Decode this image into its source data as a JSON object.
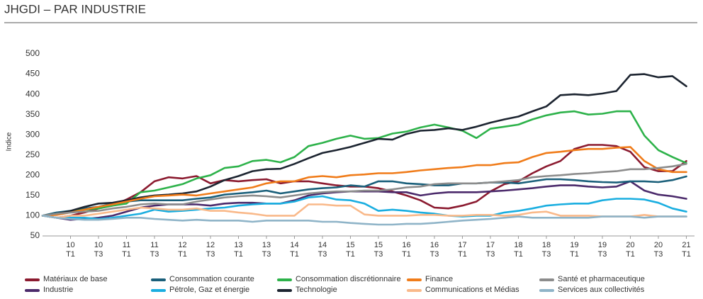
{
  "chart_data": {
    "type": "line",
    "title": "JHGDI – PAR INDUSTRIE",
    "y_label": "Indice",
    "categories": [
      null,
      null,
      "10 T1",
      null,
      "10 T3",
      null,
      "11 T1",
      null,
      "11 T3",
      null,
      "12 T1",
      null,
      "12 T3",
      null,
      "13 T1",
      null,
      "13 T3",
      null,
      "14 T1",
      null,
      "14 T3",
      null,
      "15 T1",
      null,
      "15 T3",
      null,
      "16 T1",
      null,
      "16 T3",
      null,
      "17 T1",
      null,
      "17 T3",
      null,
      "18 T1",
      null,
      "18 T3",
      null,
      "19 T1",
      null,
      "19 T3",
      null,
      "20 T1",
      null,
      "20 T3",
      null,
      "21 T1"
    ],
    "ylim": [
      50,
      500
    ],
    "yticks": [
      50,
      100,
      150,
      200,
      250,
      300,
      350,
      400,
      450,
      500
    ],
    "grid": false,
    "series": [
      {
        "name": "Matériaux de base",
        "color": "#8b1a2f",
        "values": [
          100,
          95,
          100,
          108,
          118,
          125,
          140,
          158,
          185,
          195,
          192,
          198,
          180,
          188,
          185,
          188,
          190,
          180,
          185,
          185,
          180,
          175,
          172,
          172,
          168,
          160,
          150,
          138,
          120,
          118,
          125,
          135,
          160,
          178,
          185,
          205,
          222,
          235,
          265,
          275,
          275,
          272,
          258,
          220,
          210,
          210,
          235
        ]
      },
      {
        "name": "Industrie",
        "color": "#4b2a6b",
        "values": [
          100,
          95,
          90,
          92,
          95,
          100,
          110,
          120,
          125,
          128,
          128,
          128,
          125,
          130,
          132,
          132,
          130,
          130,
          138,
          150,
          155,
          158,
          160,
          160,
          160,
          158,
          158,
          150,
          155,
          158,
          158,
          158,
          160,
          162,
          165,
          168,
          172,
          175,
          175,
          172,
          170,
          172,
          185,
          162,
          152,
          148,
          142
        ]
      },
      {
        "name": "Consommation courante",
        "color": "#1a5f7a",
        "values": [
          100,
          108,
          112,
          118,
          122,
          130,
          135,
          138,
          138,
          138,
          138,
          142,
          145,
          152,
          155,
          158,
          162,
          155,
          160,
          165,
          168,
          170,
          175,
          172,
          185,
          185,
          180,
          178,
          175,
          175,
          180,
          180,
          182,
          182,
          180,
          185,
          190,
          190,
          188,
          185,
          183,
          182,
          185,
          185,
          183,
          188,
          197
        ]
      },
      {
        "name": "Pétrole, Gaz et énergie",
        "color": "#1aaee0",
        "values": [
          100,
          95,
          95,
          95,
          92,
          95,
          100,
          105,
          115,
          110,
          112,
          115,
          118,
          120,
          125,
          128,
          130,
          130,
          135,
          145,
          148,
          140,
          138,
          130,
          112,
          115,
          112,
          108,
          105,
          100,
          98,
          100,
          100,
          108,
          112,
          118,
          125,
          128,
          130,
          130,
          138,
          142,
          142,
          140,
          132,
          118,
          110
        ]
      },
      {
        "name": "Consommation discrétionnaire",
        "color": "#2db24a",
        "values": [
          100,
          105,
          110,
          115,
          118,
          125,
          130,
          158,
          162,
          170,
          178,
          192,
          200,
          218,
          222,
          235,
          238,
          232,
          245,
          272,
          280,
          290,
          298,
          290,
          292,
          303,
          308,
          318,
          325,
          318,
          310,
          292,
          315,
          320,
          325,
          338,
          348,
          355,
          358,
          350,
          352,
          358,
          358,
          298,
          262,
          245,
          230
        ]
      },
      {
        "name": "Technologie",
        "color": "#1c2430",
        "values": [
          100,
          105,
          112,
          122,
          130,
          132,
          138,
          145,
          150,
          152,
          155,
          160,
          172,
          188,
          198,
          210,
          215,
          216,
          228,
          242,
          255,
          262,
          270,
          280,
          290,
          288,
          302,
          310,
          312,
          316,
          312,
          320,
          330,
          338,
          345,
          358,
          370,
          398,
          400,
          398,
          402,
          408,
          448,
          450,
          442,
          445,
          420
        ]
      },
      {
        "name": "Finance",
        "color": "#f07c1a",
        "values": [
          100,
          102,
          108,
          115,
          122,
          128,
          135,
          142,
          148,
          150,
          152,
          150,
          155,
          160,
          165,
          170,
          180,
          185,
          185,
          195,
          198,
          195,
          200,
          202,
          205,
          205,
          208,
          212,
          215,
          218,
          220,
          225,
          225,
          230,
          232,
          245,
          255,
          258,
          262,
          265,
          265,
          268,
          270,
          235,
          215,
          208,
          208
        ]
      },
      {
        "name": "Communications et Médias",
        "color": "#f9b98a",
        "values": [
          100,
          95,
          100,
          100,
          105,
          110,
          115,
          120,
          118,
          115,
          115,
          118,
          112,
          112,
          108,
          105,
          100,
          100,
          100,
          128,
          128,
          125,
          125,
          103,
          100,
          100,
          100,
          102,
          102,
          100,
          100,
          102,
          102,
          100,
          102,
          108,
          110,
          100,
          100,
          100,
          98,
          98,
          98,
          102,
          98,
          98,
          98
        ]
      },
      {
        "name": "Santé et pharmaceutique",
        "color": "#8c8c8c",
        "values": [
          100,
          105,
          108,
          110,
          112,
          118,
          122,
          128,
          130,
          128,
          128,
          135,
          140,
          145,
          148,
          150,
          148,
          145,
          150,
          155,
          158,
          160,
          160,
          162,
          162,
          165,
          170,
          172,
          178,
          180,
          180,
          180,
          182,
          185,
          188,
          195,
          198,
          200,
          203,
          205,
          208,
          210,
          215,
          215,
          218,
          222,
          228
        ]
      },
      {
        "name": "Services aux collectivités",
        "color": "#8fb4c8",
        "values": [
          100,
          95,
          92,
          90,
          90,
          92,
          95,
          95,
          92,
          90,
          88,
          90,
          88,
          88,
          88,
          85,
          88,
          88,
          88,
          88,
          85,
          85,
          82,
          80,
          78,
          78,
          80,
          80,
          82,
          85,
          88,
          90,
          92,
          95,
          98,
          95,
          95,
          95,
          95,
          95,
          98,
          98,
          98,
          95,
          98,
          98,
          98
        ]
      }
    ]
  }
}
